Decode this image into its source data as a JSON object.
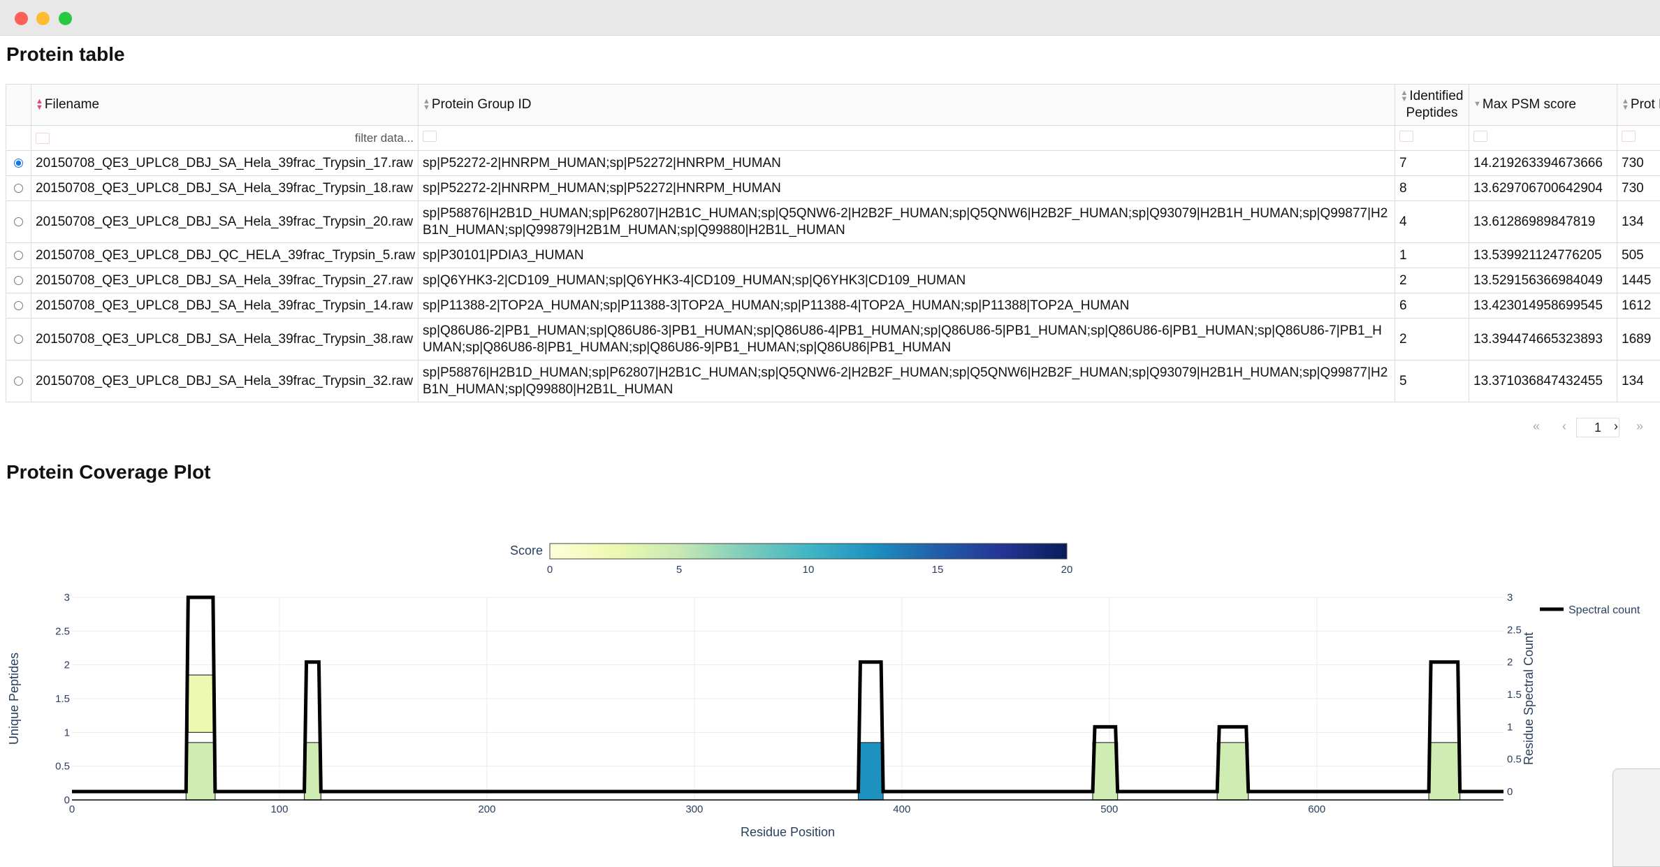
{
  "window": {
    "controls": [
      "close",
      "minimize",
      "zoom"
    ]
  },
  "protein_table": {
    "title": "Protein table",
    "columns": [
      "Filename",
      "Protein Group ID",
      "Identified Peptides",
      "Max PSM score",
      "Prot Leng"
    ],
    "filter_placeholder": "filter data...",
    "rows": [
      {
        "selected": true,
        "filename": "20150708_QE3_UPLC8_DBJ_SA_Hela_39frac_Trypsin_17.raw",
        "protein": "sp|P52272-2|HNRPM_HUMAN;sp|P52272|HNRPM_HUMAN",
        "peptides": "7",
        "psm": "14.219263394673666",
        "length": "730"
      },
      {
        "selected": false,
        "filename": "20150708_QE3_UPLC8_DBJ_SA_Hela_39frac_Trypsin_18.raw",
        "protein": "sp|P52272-2|HNRPM_HUMAN;sp|P52272|HNRPM_HUMAN",
        "peptides": "8",
        "psm": "13.629706700642904",
        "length": "730"
      },
      {
        "selected": false,
        "filename": "20150708_QE3_UPLC8_DBJ_SA_Hela_39frac_Trypsin_20.raw",
        "protein": "sp|P58876|H2B1D_HUMAN;sp|P62807|H2B1C_HUMAN;sp|Q5QNW6-2|H2B2F_HUMAN;sp|Q5QNW6|H2B2F_HUMAN;sp|Q93079|H2B1H_HUMAN;sp|Q99877|H2B1N_HUMAN;sp|Q99879|H2B1M_HUMAN;sp|Q99880|H2B1L_HUMAN",
        "peptides": "4",
        "psm": "13.61286989847819",
        "length": "134"
      },
      {
        "selected": false,
        "filename": "20150708_QE3_UPLC8_DBJ_QC_HELA_39frac_Trypsin_5.raw",
        "protein": "sp|P30101|PDIA3_HUMAN",
        "peptides": "1",
        "psm": "13.539921124776205",
        "length": "505"
      },
      {
        "selected": false,
        "filename": "20150708_QE3_UPLC8_DBJ_SA_Hela_39frac_Trypsin_27.raw",
        "protein": "sp|Q6YHK3-2|CD109_HUMAN;sp|Q6YHK3-4|CD109_HUMAN;sp|Q6YHK3|CD109_HUMAN",
        "peptides": "2",
        "psm": "13.529156366984049",
        "length": "1445"
      },
      {
        "selected": false,
        "filename": "20150708_QE3_UPLC8_DBJ_SA_Hela_39frac_Trypsin_14.raw",
        "protein": "sp|P11388-2|TOP2A_HUMAN;sp|P11388-3|TOP2A_HUMAN;sp|P11388-4|TOP2A_HUMAN;sp|P11388|TOP2A_HUMAN",
        "peptides": "6",
        "psm": "13.423014958699545",
        "length": "1612"
      },
      {
        "selected": false,
        "filename": "20150708_QE3_UPLC8_DBJ_SA_Hela_39frac_Trypsin_38.raw",
        "protein": "sp|Q86U86-2|PB1_HUMAN;sp|Q86U86-3|PB1_HUMAN;sp|Q86U86-4|PB1_HUMAN;sp|Q86U86-5|PB1_HUMAN;sp|Q86U86-6|PB1_HUMAN;sp|Q86U86-7|PB1_HUMAN;sp|Q86U86-8|PB1_HUMAN;sp|Q86U86-9|PB1_HUMAN;sp|Q86U86|PB1_HUMAN",
        "peptides": "2",
        "psm": "13.394474665323893",
        "length": "1689"
      },
      {
        "selected": false,
        "filename": "20150708_QE3_UPLC8_DBJ_SA_Hela_39frac_Trypsin_32.raw",
        "protein": "sp|P58876|H2B1D_HUMAN;sp|P62807|H2B1C_HUMAN;sp|Q5QNW6-2|H2B2F_HUMAN;sp|Q5QNW6|H2B2F_HUMAN;sp|Q93079|H2B1H_HUMAN;sp|Q99877|H2B1N_HUMAN;sp|Q99880|H2B1L_HUMAN",
        "peptides": "5",
        "psm": "13.371036847432455",
        "length": "134"
      }
    ]
  },
  "pagination": {
    "first": "«",
    "prev": "‹",
    "page": "1",
    "next": "›",
    "last": "»"
  },
  "coverage_plot": {
    "title": "Protein Coverage Plot"
  },
  "chart_data": {
    "type": "bar",
    "xlabel": "Residue Position",
    "ylabel": "Unique Peptides",
    "y2label": "Residue Spectral Count",
    "xlim": [
      0,
      690
    ],
    "ylim": [
      0,
      3
    ],
    "xticks": [
      0,
      100,
      200,
      300,
      400,
      500,
      600
    ],
    "yticks": [
      0,
      0.5,
      1,
      1.5,
      2,
      2.5,
      3
    ],
    "colorbar": {
      "title": "Score",
      "range": [
        0,
        20
      ],
      "ticks": [
        0,
        5,
        10,
        15,
        20
      ],
      "colors": [
        "#ffffd9",
        "#edf8b1",
        "#c7e9b4",
        "#7fcdbb",
        "#41b6c4",
        "#1d91c0",
        "#225ea8",
        "#253494",
        "#081d58"
      ]
    },
    "legend": {
      "label": "Spectral count",
      "position": "top-right"
    },
    "peptides": [
      {
        "start": 55,
        "end": 69,
        "y0": 0,
        "y1": 0.85,
        "score": 4.5
      },
      {
        "start": 56,
        "end": 69,
        "y0": 1,
        "y1": 1.85,
        "score": 2.5
      },
      {
        "start": 112,
        "end": 120,
        "y0": 0,
        "y1": 0.85,
        "score": 4.5
      },
      {
        "start": 379,
        "end": 391,
        "y0": 0,
        "y1": 0.85,
        "score": 12.5
      },
      {
        "start": 492,
        "end": 504,
        "y0": 0,
        "y1": 0.85,
        "score": 4.5
      },
      {
        "start": 552,
        "end": 567,
        "y0": 0,
        "y1": 0.85,
        "score": 4.5
      },
      {
        "start": 654,
        "end": 669,
        "y0": 0,
        "y1": 0.85,
        "score": 4.5
      }
    ],
    "spectral_count": [
      {
        "x": 0,
        "y": 0
      },
      {
        "x": 55,
        "y": 0
      },
      {
        "x": 56,
        "y": 3
      },
      {
        "x": 68,
        "y": 3
      },
      {
        "x": 69,
        "y": 0
      },
      {
        "x": 112,
        "y": 0
      },
      {
        "x": 113,
        "y": 2
      },
      {
        "x": 119,
        "y": 2
      },
      {
        "x": 120,
        "y": 0
      },
      {
        "x": 379,
        "y": 0
      },
      {
        "x": 380,
        "y": 2
      },
      {
        "x": 390,
        "y": 2
      },
      {
        "x": 391,
        "y": 0
      },
      {
        "x": 492,
        "y": 0
      },
      {
        "x": 493,
        "y": 1
      },
      {
        "x": 503,
        "y": 1
      },
      {
        "x": 504,
        "y": 0
      },
      {
        "x": 552,
        "y": 0
      },
      {
        "x": 553,
        "y": 1
      },
      {
        "x": 566,
        "y": 1
      },
      {
        "x": 567,
        "y": 0
      },
      {
        "x": 654,
        "y": 0
      },
      {
        "x": 655,
        "y": 2
      },
      {
        "x": 668,
        "y": 2
      },
      {
        "x": 669,
        "y": 0
      },
      {
        "x": 690,
        "y": 0
      }
    ]
  }
}
